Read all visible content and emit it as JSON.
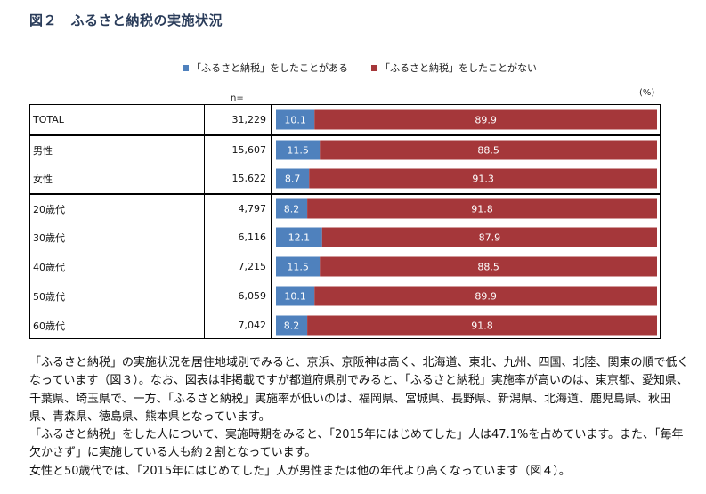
{
  "title": "図２　ふるさと納税の実施状況",
  "legend": [
    {
      "label": "「ふるさと納税」をしたことがある",
      "color": "#4f81bd"
    },
    {
      "label": "「ふるさと納税」をしたことがない",
      "color": "#a5373a"
    }
  ],
  "n_header": "n=",
  "unit": "(%)",
  "chart_data": {
    "type": "bar",
    "orientation": "horizontal",
    "stacked": true,
    "categories": [
      "TOTAL",
      "男性",
      "女性",
      "20歳代",
      "30歳代",
      "40歳代",
      "50歳代",
      "60歳代"
    ],
    "n": [
      "31,229",
      "15,607",
      "15,622",
      "4,797",
      "6,116",
      "7,215",
      "6,059",
      "7,042"
    ],
    "series": [
      {
        "name": "「ふるさと納税」をしたことがある",
        "color": "#4f81bd",
        "values": [
          10.1,
          11.5,
          8.7,
          8.2,
          12.1,
          11.5,
          10.1,
          8.2
        ]
      },
      {
        "name": "「ふるさと納税」をしたことがない",
        "color": "#a5373a",
        "values": [
          89.9,
          88.5,
          91.3,
          91.8,
          87.9,
          88.5,
          89.9,
          91.8
        ]
      }
    ],
    "ylabel": "(%)",
    "xlim": [
      0,
      100
    ],
    "data_labels": true,
    "legend_position": "top",
    "grid": false
  },
  "rows": [
    {
      "label": "TOTAL",
      "n": "31,229"
    },
    {
      "label": "男性",
      "n": "15,607"
    },
    {
      "label": "女性",
      "n": "15,622"
    },
    {
      "label": "20歳代",
      "n": "4,797"
    },
    {
      "label": "30歳代",
      "n": "6,116"
    },
    {
      "label": "40歳代",
      "n": "7,215"
    },
    {
      "label": "50歳代",
      "n": "6,059"
    },
    {
      "label": "60歳代",
      "n": "7,042"
    }
  ],
  "paragraphs": [
    "「ふるさと納税」の実施状況を居住地域別でみると、京浜、京阪神は高く、北海道、東北、九州、四国、北陸、関東の順で低くなっています（図３）。なお、図表は非掲載ですが都道府県別でみると、「ふるさと納税」実施率が高いのは、東京都、愛知県、千葉県、埼玉県で、一方、「ふるさと納税」実施率が低いのは、福岡県、宮城県、長野県、新潟県、北海道、鹿児島県、秋田県、青森県、徳島県、熊本県となっています。",
    "「ふるさと納税」をした人について、実施時期をみると、「2015年にはじめてした」人は47.1%を占めています。また、「毎年欠かさず」に実施している人も約２割となっています。",
    "女性と50歳代では、「2015年にはじめてした」人が男性または他の年代より高くなっています（図４）。"
  ]
}
